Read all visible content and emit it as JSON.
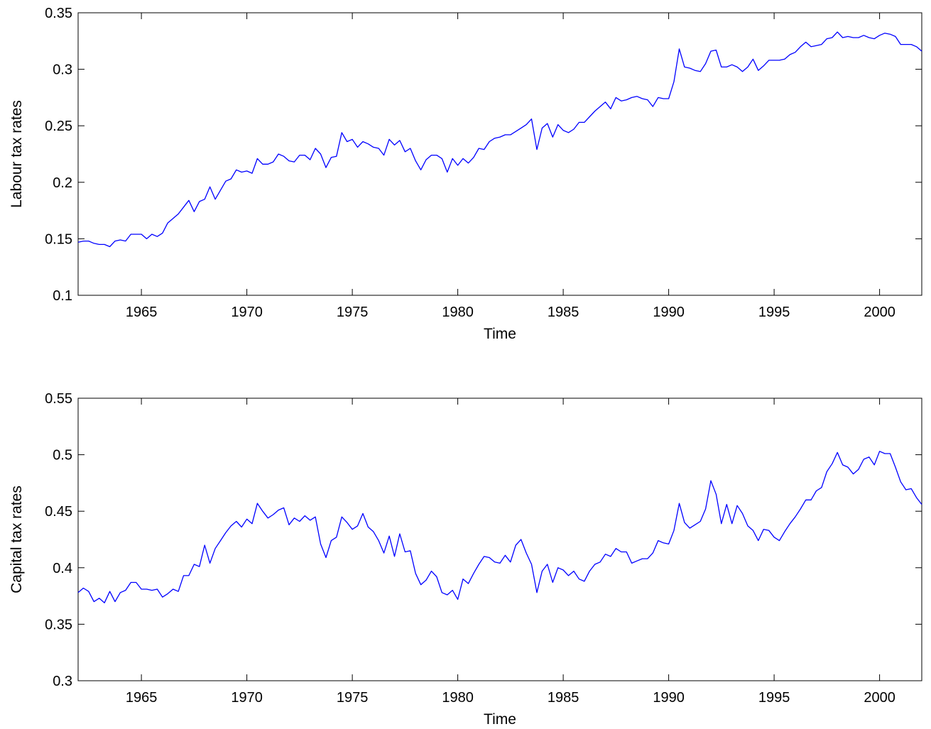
{
  "chart_data": [
    {
      "type": "line",
      "title": "",
      "xlabel": "Time",
      "ylabel": "Labour tax rates",
      "xlim": [
        1962.0,
        2002.0
      ],
      "ylim": [
        0.1,
        0.35
      ],
      "xticks": [
        1965,
        1970,
        1975,
        1980,
        1985,
        1990,
        1995,
        2000
      ],
      "yticks": [
        0.1,
        0.15,
        0.2,
        0.25,
        0.3,
        0.35
      ],
      "ytick_labels": [
        "0.1",
        "0.15",
        "0.2",
        "0.25",
        "0.3",
        "0.35"
      ],
      "grid": false,
      "line_color": "#0000ff",
      "series": [
        {
          "x_start": 1962.0,
          "x_step": 0.25,
          "values": [
            0.147,
            0.148,
            0.148,
            0.146,
            0.145,
            0.145,
            0.143,
            0.148,
            0.149,
            0.148,
            0.154,
            0.154,
            0.154,
            0.15,
            0.154,
            0.152,
            0.155,
            0.164,
            0.168,
            0.172,
            0.178,
            0.184,
            0.174,
            0.183,
            0.185,
            0.196,
            0.185,
            0.193,
            0.201,
            0.203,
            0.211,
            0.209,
            0.21,
            0.208,
            0.221,
            0.216,
            0.216,
            0.218,
            0.225,
            0.223,
            0.219,
            0.218,
            0.224,
            0.224,
            0.22,
            0.23,
            0.225,
            0.213,
            0.222,
            0.223,
            0.244,
            0.236,
            0.238,
            0.231,
            0.236,
            0.234,
            0.231,
            0.23,
            0.224,
            0.238,
            0.233,
            0.237,
            0.227,
            0.23,
            0.219,
            0.211,
            0.22,
            0.224,
            0.224,
            0.221,
            0.209,
            0.221,
            0.215,
            0.221,
            0.217,
            0.222,
            0.23,
            0.229,
            0.236,
            0.239,
            0.24,
            0.242,
            0.242,
            0.245,
            0.248,
            0.251,
            0.256,
            0.229,
            0.248,
            0.252,
            0.24,
            0.251,
            0.246,
            0.244,
            0.247,
            0.253,
            0.253,
            0.258,
            0.263,
            0.267,
            0.271,
            0.265,
            0.275,
            0.272,
            0.273,
            0.275,
            0.276,
            0.274,
            0.273,
            0.267,
            0.275,
            0.274,
            0.274,
            0.289,
            0.318,
            0.302,
            0.301,
            0.299,
            0.298,
            0.305,
            0.316,
            0.317,
            0.302,
            0.302,
            0.304,
            0.302,
            0.298,
            0.302,
            0.309,
            0.299,
            0.303,
            0.308,
            0.308,
            0.308,
            0.309,
            0.313,
            0.315,
            0.32,
            0.324,
            0.32,
            0.321,
            0.322,
            0.327,
            0.328,
            0.333,
            0.328,
            0.329,
            0.328,
            0.328,
            0.33,
            0.328,
            0.327,
            0.33,
            0.332,
            0.331,
            0.329,
            0.322,
            0.322,
            0.322,
            0.32,
            0.316
          ]
        }
      ]
    },
    {
      "type": "line",
      "title": "",
      "xlabel": "Time",
      "ylabel": "Capital tax rates",
      "xlim": [
        1962.0,
        2002.0
      ],
      "ylim": [
        0.3,
        0.55
      ],
      "xticks": [
        1965,
        1970,
        1975,
        1980,
        1985,
        1990,
        1995,
        2000
      ],
      "yticks": [
        0.3,
        0.35,
        0.4,
        0.45,
        0.5,
        0.55
      ],
      "ytick_labels": [
        "0.3",
        "0.35",
        "0.4",
        "0.45",
        "0.5",
        "0.55"
      ],
      "grid": false,
      "line_color": "#0000ff",
      "series": [
        {
          "x_start": 1962.0,
          "x_step": 0.25,
          "values": [
            0.378,
            0.382,
            0.379,
            0.37,
            0.373,
            0.369,
            0.379,
            0.37,
            0.378,
            0.38,
            0.387,
            0.387,
            0.381,
            0.381,
            0.38,
            0.381,
            0.374,
            0.377,
            0.381,
            0.379,
            0.393,
            0.393,
            0.403,
            0.401,
            0.42,
            0.404,
            0.417,
            0.424,
            0.431,
            0.437,
            0.441,
            0.436,
            0.443,
            0.439,
            0.457,
            0.45,
            0.444,
            0.447,
            0.451,
            0.453,
            0.438,
            0.444,
            0.441,
            0.446,
            0.442,
            0.445,
            0.421,
            0.409,
            0.424,
            0.427,
            0.445,
            0.44,
            0.434,
            0.437,
            0.448,
            0.436,
            0.432,
            0.424,
            0.413,
            0.428,
            0.41,
            0.43,
            0.414,
            0.415,
            0.395,
            0.385,
            0.389,
            0.397,
            0.392,
            0.378,
            0.376,
            0.38,
            0.372,
            0.39,
            0.386,
            0.395,
            0.403,
            0.41,
            0.409,
            0.405,
            0.404,
            0.411,
            0.405,
            0.42,
            0.425,
            0.413,
            0.403,
            0.378,
            0.397,
            0.403,
            0.387,
            0.4,
            0.398,
            0.393,
            0.397,
            0.39,
            0.388,
            0.397,
            0.403,
            0.405,
            0.412,
            0.41,
            0.417,
            0.414,
            0.414,
            0.404,
            0.406,
            0.408,
            0.408,
            0.413,
            0.424,
            0.422,
            0.421,
            0.433,
            0.457,
            0.44,
            0.435,
            0.438,
            0.441,
            0.452,
            0.477,
            0.465,
            0.439,
            0.456,
            0.439,
            0.455,
            0.448,
            0.437,
            0.433,
            0.424,
            0.434,
            0.433,
            0.427,
            0.424,
            0.432,
            0.439,
            0.445,
            0.452,
            0.46,
            0.46,
            0.468,
            0.471,
            0.485,
            0.492,
            0.502,
            0.491,
            0.489,
            0.483,
            0.487,
            0.496,
            0.498,
            0.491,
            0.503,
            0.501,
            0.501,
            0.489,
            0.476,
            0.469,
            0.47,
            0.462,
            0.456
          ]
        }
      ]
    }
  ]
}
